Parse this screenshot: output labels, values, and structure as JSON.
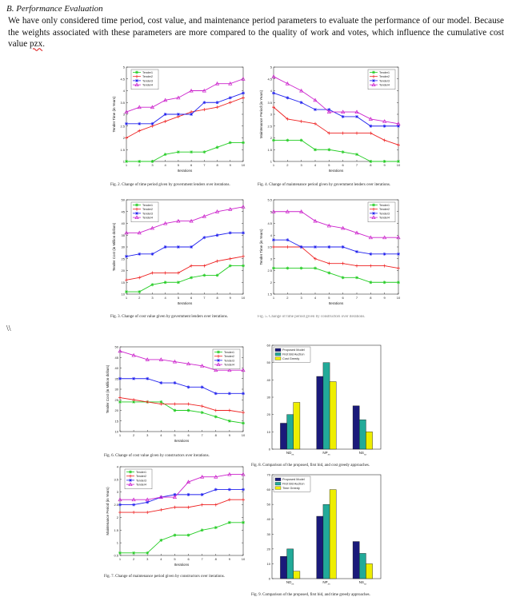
{
  "section": {
    "heading": "B.  Performance Evaluation"
  },
  "paragraph": {
    "text_main": "We have only considered time period, cost value, and maintenance period parameters to evaluate the performance of our model. Because the weights associated with these parameters are more compared to the quality of work and votes, which influence the cumulative cost value ",
    "text_underlined": "pzx",
    "text_end": "."
  },
  "stray_text": "\\\\",
  "captions": {
    "fig2": "Fig. 2.   Change of time period given by government lenders over iterations.",
    "fig4": "Fig. 4.   Change of maintenance period given by government lenders over iterations.",
    "fig3": "Fig. 3.   Change of cost value given by government lenders over iterations.",
    "fig5": "Fig. 5.   Change of time period given by constructors over iterations.",
    "fig6": "Fig. 6.   Change of cost value given by constructors over iterations.",
    "fig8": "Fig. 8.   Comparison of the proposed, first bid, and cost greedy approaches.",
    "fig7": "Fig. 7.   Change of maintenance period given by constructors over iterations.",
    "fig9": "Fig. 9.   Comparison of the proposed, first bid, and time greedy approaches."
  },
  "colors": {
    "tender1": "#22cc22",
    "tender2": "#ee2222",
    "tender3": "#2222ee",
    "tender4": "#cc22cc",
    "proposed": "#1a1a7a",
    "firstbid": "#22aa99",
    "greedy": "#eeee00"
  },
  "chart_data": [
    {
      "id": "fig2",
      "type": "line",
      "xlabel": "Iterations",
      "ylabel": "Tender Time (in Years)",
      "x": [
        1,
        2,
        3,
        4,
        5,
        6,
        7,
        8,
        9,
        10
      ],
      "xlim": [
        1,
        10
      ],
      "ylim": [
        1,
        5
      ],
      "yticks": [
        1,
        1.5,
        2,
        2.5,
        3,
        3.5,
        4,
        4.5,
        5
      ],
      "ytick_labels": [
        "1",
        "1.5",
        "2",
        "2.5",
        "3",
        "3.5",
        "4",
        "4.5",
        "5"
      ],
      "legend": "top-left",
      "series": [
        {
          "name": "Tender1",
          "color": "#22cc22",
          "marker": "*",
          "values": [
            1,
            1,
            1,
            1.3,
            1.4,
            1.4,
            1.4,
            1.6,
            1.8,
            1.8
          ]
        },
        {
          "name": "Tender2",
          "color": "#ee2222",
          "marker": "+",
          "values": [
            2,
            2.3,
            2.5,
            2.7,
            2.9,
            3.1,
            3.2,
            3.3,
            3.5,
            3.7
          ]
        },
        {
          "name": "Tender3",
          "color": "#2222ee",
          "marker": "*",
          "values": [
            2.6,
            2.6,
            2.6,
            3,
            3,
            3,
            3.5,
            3.5,
            3.7,
            3.9
          ]
        },
        {
          "name": "Tender4",
          "color": "#cc22cc",
          "marker": "^",
          "values": [
            3.1,
            3.3,
            3.3,
            3.6,
            3.7,
            4,
            4,
            4.3,
            4.3,
            4.5
          ]
        }
      ]
    },
    {
      "id": "fig4",
      "type": "line",
      "xlabel": "Iterations",
      "ylabel": "Maintenance Period (in Years)",
      "x": [
        1,
        2,
        3,
        4,
        5,
        6,
        7,
        8,
        9,
        10
      ],
      "xlim": [
        1,
        10
      ],
      "ylim": [
        1,
        5
      ],
      "yticks": [
        1,
        1.5,
        2,
        2.5,
        3,
        3.5,
        4,
        4.5,
        5
      ],
      "ytick_labels": [
        "1",
        "1.5",
        "2",
        "2.5",
        "3",
        "3.5",
        "4",
        "4.5",
        "5"
      ],
      "legend": "top-right",
      "series": [
        {
          "name": "Tender1",
          "color": "#22cc22",
          "marker": "*",
          "values": [
            1.9,
            1.9,
            1.9,
            1.5,
            1.5,
            1.4,
            1.3,
            1,
            1,
            1
          ]
        },
        {
          "name": "Tender2",
          "color": "#ee2222",
          "marker": "+",
          "values": [
            3.3,
            2.8,
            2.7,
            2.6,
            2.2,
            2.2,
            2.2,
            2.2,
            1.9,
            1.7
          ]
        },
        {
          "name": "Tender3",
          "color": "#2222ee",
          "marker": "*",
          "values": [
            3.9,
            3.7,
            3.5,
            3.2,
            3.2,
            2.9,
            2.9,
            2.5,
            2.5,
            2.5
          ]
        },
        {
          "name": "Tender4",
          "color": "#cc22cc",
          "marker": "^",
          "values": [
            4.6,
            4.3,
            4,
            3.6,
            3.1,
            3.1,
            3.1,
            2.8,
            2.7,
            2.6
          ]
        }
      ]
    },
    {
      "id": "fig3",
      "type": "line",
      "xlabel": "Iterations",
      "ylabel": "Tender Cost (in Million dollars)",
      "x": [
        1,
        2,
        3,
        4,
        5,
        6,
        7,
        8,
        9,
        10
      ],
      "xlim": [
        1,
        10
      ],
      "ylim": [
        10,
        50
      ],
      "yticks": [
        10,
        15,
        20,
        25,
        30,
        35,
        40,
        45,
        50
      ],
      "ytick_labels": [
        "10",
        "15",
        "20",
        "25",
        "30",
        "35",
        "40",
        "45",
        "50"
      ],
      "legend": "top-left",
      "series": [
        {
          "name": "Tender1",
          "color": "#22cc22",
          "marker": "*",
          "values": [
            11,
            11,
            14,
            15,
            15,
            17,
            18,
            18,
            22,
            22
          ]
        },
        {
          "name": "Tender2",
          "color": "#ee2222",
          "marker": "+",
          "values": [
            16,
            17,
            19,
            19,
            19,
            22,
            22,
            24,
            25,
            26
          ]
        },
        {
          "name": "Tender3",
          "color": "#2222ee",
          "marker": "*",
          "values": [
            26,
            27,
            27,
            30,
            30,
            30,
            34,
            35,
            36,
            36
          ]
        },
        {
          "name": "Tender4",
          "color": "#cc22cc",
          "marker": "^",
          "values": [
            36,
            36,
            38,
            40,
            41,
            41,
            43,
            45,
            46,
            47
          ]
        }
      ]
    },
    {
      "id": "fig5",
      "type": "line",
      "xlabel": "Iterations",
      "ylabel": "Tender Time (in Years)",
      "x": [
        1,
        2,
        3,
        4,
        5,
        6,
        7,
        8,
        9,
        10
      ],
      "xlim": [
        1,
        10
      ],
      "ylim": [
        1.5,
        5.5
      ],
      "yticks": [
        1.5,
        2,
        2.5,
        3,
        3.5,
        4,
        4.5,
        5,
        5.5
      ],
      "ytick_labels": [
        "1.5",
        "2",
        "2.5",
        "3",
        "3.5",
        "4",
        "4.5",
        "5",
        "5.5"
      ],
      "legend": "top-right",
      "series": [
        {
          "name": "Tender1",
          "color": "#22cc22",
          "marker": "*",
          "values": [
            2.6,
            2.6,
            2.6,
            2.6,
            2.4,
            2.2,
            2.2,
            2,
            2,
            2
          ]
        },
        {
          "name": "Tender2",
          "color": "#ee2222",
          "marker": "+",
          "values": [
            3.5,
            3.5,
            3.5,
            3,
            2.8,
            2.8,
            2.7,
            2.7,
            2.7,
            2.6
          ]
        },
        {
          "name": "Tender3",
          "color": "#2222ee",
          "marker": "*",
          "values": [
            3.8,
            3.8,
            3.5,
            3.5,
            3.5,
            3.5,
            3.3,
            3.2,
            3.2,
            3.2
          ]
        },
        {
          "name": "Tender4",
          "color": "#cc22cc",
          "marker": "^",
          "values": [
            5,
            5,
            5,
            4.6,
            4.4,
            4.3,
            4.1,
            3.9,
            3.9,
            3.9
          ]
        }
      ]
    },
    {
      "id": "fig6",
      "type": "line",
      "xlabel": "Iterations",
      "ylabel": "Tender Cost (in Million dollars)",
      "x": [
        1,
        2,
        3,
        4,
        5,
        6,
        7,
        8,
        9,
        10
      ],
      "xlim": [
        1,
        10
      ],
      "ylim": [
        10,
        50
      ],
      "yticks": [
        10,
        15,
        20,
        25,
        30,
        35,
        40,
        45,
        50
      ],
      "ytick_labels": [
        "10",
        "15",
        "20",
        "25",
        "30",
        "35",
        "40",
        "45",
        "50"
      ],
      "legend": "top-right",
      "series": [
        {
          "name": "Tender1",
          "color": "#22cc22",
          "marker": "*",
          "values": [
            24,
            24,
            24,
            24,
            20,
            20,
            19,
            17,
            15,
            14
          ]
        },
        {
          "name": "Tender2",
          "color": "#ee2222",
          "marker": "+",
          "values": [
            26,
            25,
            24,
            23,
            23,
            23,
            22,
            20,
            20,
            19
          ]
        },
        {
          "name": "Tender3",
          "color": "#2222ee",
          "marker": "*",
          "values": [
            35,
            35,
            35,
            33,
            33,
            31,
            31,
            28,
            28,
            28
          ]
        },
        {
          "name": "Tender4",
          "color": "#cc22cc",
          "marker": "^",
          "values": [
            48,
            46,
            44,
            44,
            43,
            42,
            41,
            39,
            39,
            39
          ]
        }
      ]
    },
    {
      "id": "fig8",
      "type": "bar",
      "categories": [
        "ND",
        "NP",
        "NS"
      ],
      "category_subscript": "xx",
      "ylim": [
        0,
        60
      ],
      "yticks": [
        0,
        10,
        20,
        30,
        40,
        50,
        60
      ],
      "ytick_labels": [
        "0",
        "10",
        "20",
        "30",
        "40",
        "50",
        "60"
      ],
      "legend": "top-left",
      "series": [
        {
          "name": "Proposed Model",
          "color": "#1a1a7a",
          "values": [
            15,
            42,
            25
          ]
        },
        {
          "name": "First Bid Auction",
          "color": "#22aa99",
          "values": [
            20,
            50,
            17
          ]
        },
        {
          "name": "Cost Greedy",
          "color": "#eeee00",
          "values": [
            27,
            39,
            10
          ]
        }
      ]
    },
    {
      "id": "fig7",
      "type": "line",
      "xlabel": "Iterations",
      "ylabel": "Maintenance Period (in Years)",
      "x": [
        1,
        2,
        3,
        4,
        5,
        6,
        7,
        8,
        9,
        10
      ],
      "xlim": [
        1,
        10
      ],
      "ylim": [
        0.5,
        4
      ],
      "yticks": [
        0.5,
        1,
        1.5,
        2,
        2.5,
        3,
        3.5,
        4
      ],
      "ytick_labels": [
        "0.5",
        "1",
        "1.5",
        "2",
        "2.5",
        "3",
        "3.5",
        "4"
      ],
      "legend": "top-left",
      "series": [
        {
          "name": "Tender1",
          "color": "#22cc22",
          "marker": "*",
          "values": [
            0.6,
            0.6,
            0.6,
            1.1,
            1.3,
            1.3,
            1.5,
            1.6,
            1.8,
            1.8
          ]
        },
        {
          "name": "Tender2",
          "color": "#ee2222",
          "marker": "+",
          "values": [
            2.2,
            2.2,
            2.2,
            2.3,
            2.4,
            2.4,
            2.5,
            2.5,
            2.7,
            2.7
          ]
        },
        {
          "name": "Tender3",
          "color": "#2222ee",
          "marker": "*",
          "values": [
            2.5,
            2.5,
            2.6,
            2.8,
            2.9,
            2.9,
            2.9,
            3.1,
            3.1,
            3.1
          ]
        },
        {
          "name": "Tender4",
          "color": "#cc22cc",
          "marker": "^",
          "values": [
            2.7,
            2.7,
            2.7,
            2.8,
            2.8,
            3.4,
            3.6,
            3.6,
            3.7,
            3.7
          ]
        }
      ]
    },
    {
      "id": "fig9",
      "type": "bar",
      "categories": [
        "ND",
        "NP",
        "NS"
      ],
      "category_subscript": "xx",
      "ylim": [
        0,
        70
      ],
      "yticks": [
        0,
        10,
        20,
        30,
        40,
        50,
        60,
        70
      ],
      "ytick_labels": [
        "0",
        "10",
        "20",
        "30",
        "40",
        "50",
        "60",
        "70"
      ],
      "legend": "top-left",
      "series": [
        {
          "name": "Proposed Model",
          "color": "#1a1a7a",
          "values": [
            15,
            42,
            25
          ]
        },
        {
          "name": "First Bid Auction",
          "color": "#22aa99",
          "values": [
            20,
            50,
            17
          ]
        },
        {
          "name": "Time Greedy",
          "color": "#eeee00",
          "values": [
            5,
            60,
            10
          ]
        }
      ]
    }
  ]
}
